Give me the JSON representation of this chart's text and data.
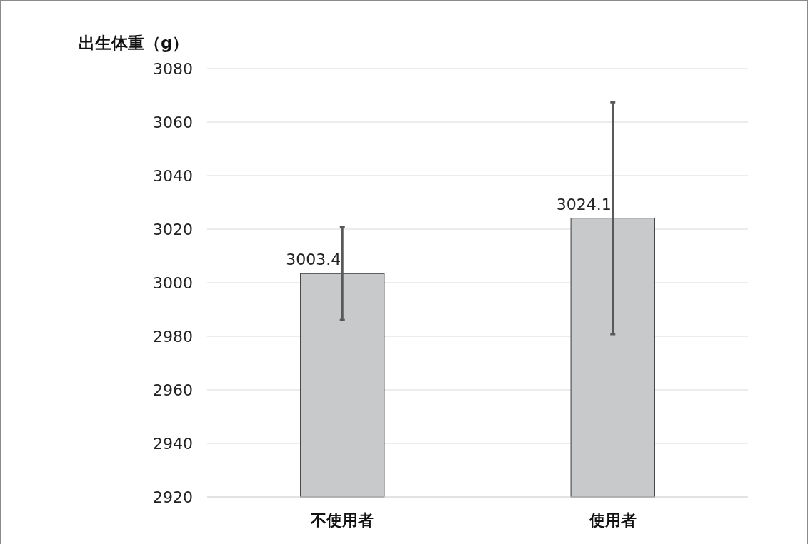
{
  "chart_data": {
    "type": "bar",
    "ylabel": "出生体重（g）",
    "categories": [
      "不使用者",
      "使用者"
    ],
    "values": [
      3003.4,
      3024.1
    ],
    "errors": [
      17.3,
      43.3
    ],
    "color": "#c8c9cb",
    "data_labels": true,
    "ylim": [
      2920,
      3080
    ],
    "yticks": [
      2920,
      2940,
      2960,
      2980,
      3000,
      3020,
      3040,
      3060,
      3080
    ],
    "grid": "y"
  }
}
